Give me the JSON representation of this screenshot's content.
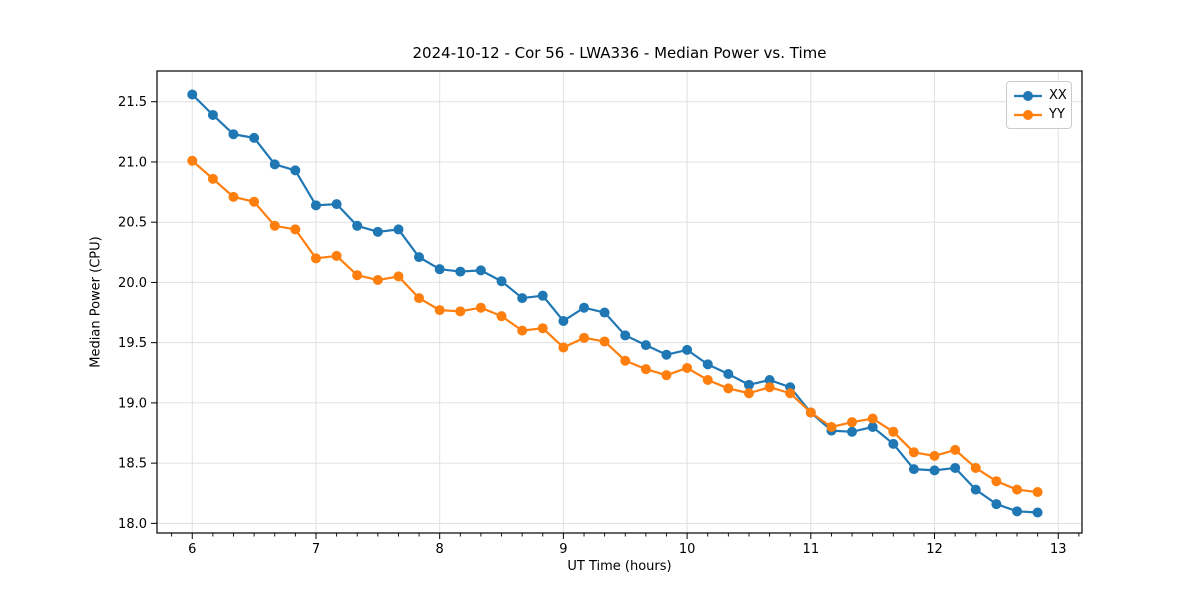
{
  "figure": {
    "title": "2024-10-12 - Cor 56 - LWA336 - Median Power vs. Time",
    "xlabel": "UT Time (hours)",
    "ylabel": "Median Power (CPU)"
  },
  "chart_data": {
    "type": "line",
    "title": "2024-10-12 - Cor 56 - LWA336 - Median Power vs. Time",
    "xlabel": "UT Time (hours)",
    "ylabel": "Median Power (CPU)",
    "xlim": [
      5.715,
      13.192
    ],
    "ylim": [
      17.92,
      21.755
    ],
    "x_ticks": [
      6,
      7,
      8,
      9,
      10,
      11,
      12,
      13
    ],
    "y_ticks": [
      18.0,
      18.5,
      19.0,
      19.5,
      20.0,
      20.5,
      21.0,
      21.5
    ],
    "x_minor_tick_step": 0.1667,
    "grid": true,
    "legend_position": "upper right",
    "marker": "circle",
    "x": [
      6.0,
      6.167,
      6.333,
      6.5,
      6.667,
      6.833,
      7.0,
      7.167,
      7.333,
      7.5,
      7.667,
      7.833,
      8.0,
      8.167,
      8.333,
      8.5,
      8.667,
      8.833,
      9.0,
      9.167,
      9.333,
      9.5,
      9.667,
      9.833,
      10.0,
      10.167,
      10.333,
      10.5,
      10.667,
      10.833,
      11.0,
      11.167,
      11.333,
      11.5,
      11.667,
      11.833,
      12.0,
      12.167,
      12.333,
      12.5,
      12.667,
      12.833
    ],
    "series": [
      {
        "name": "XX",
        "color": "#1f77b4",
        "values": [
          21.56,
          21.39,
          21.23,
          21.2,
          20.98,
          20.93,
          20.64,
          20.65,
          20.47,
          20.42,
          20.44,
          20.21,
          20.11,
          20.09,
          20.1,
          20.01,
          19.87,
          19.89,
          19.68,
          19.79,
          19.75,
          19.56,
          19.48,
          19.4,
          19.44,
          19.32,
          19.24,
          19.15,
          19.19,
          19.13,
          18.92,
          18.77,
          18.76,
          18.8,
          18.66,
          18.45,
          18.44,
          18.46,
          18.28,
          18.16,
          18.1,
          18.09
        ]
      },
      {
        "name": "YY",
        "color": "#ff7f0e",
        "values": [
          21.01,
          20.86,
          20.71,
          20.67,
          20.47,
          20.44,
          20.2,
          20.22,
          20.06,
          20.02,
          20.05,
          19.87,
          19.77,
          19.76,
          19.79,
          19.72,
          19.6,
          19.62,
          19.46,
          19.54,
          19.51,
          19.35,
          19.28,
          19.23,
          19.29,
          19.19,
          19.12,
          19.08,
          19.13,
          19.08,
          18.92,
          18.8,
          18.84,
          18.87,
          18.76,
          18.59,
          18.56,
          18.61,
          18.46,
          18.35,
          18.28,
          18.26
        ]
      }
    ]
  }
}
